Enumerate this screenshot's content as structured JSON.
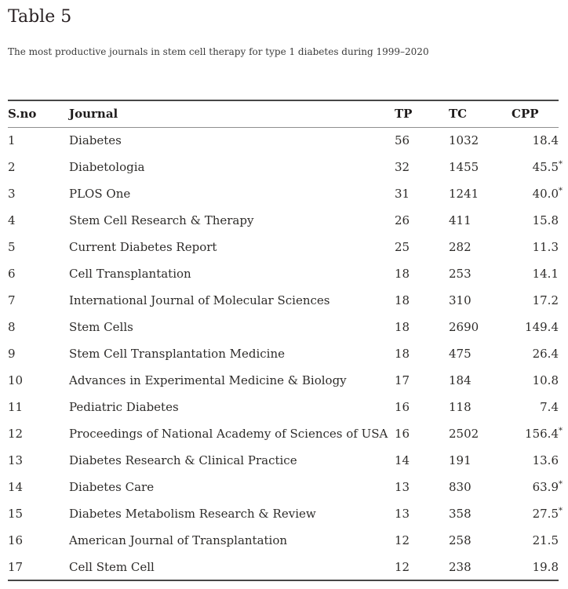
{
  "page": {
    "title": "Table 5",
    "caption": "The most productive journals in stem cell therapy for type 1 diabetes during 1999–2020"
  },
  "table": {
    "columns": [
      "S.no",
      "Journal",
      "TP",
      "TC",
      "CPP"
    ],
    "star_symbol": "*",
    "rows": [
      {
        "sno": "1",
        "journal": "Diabetes",
        "tp": "56",
        "tc": "1032",
        "cpp": "18.4",
        "star": false
      },
      {
        "sno": "2",
        "journal": "Diabetologia",
        "tp": "32",
        "tc": "1455",
        "cpp": "45.5",
        "star": true
      },
      {
        "sno": "3",
        "journal": "PLOS One",
        "tp": "31",
        "tc": "1241",
        "cpp": "40.0",
        "star": true
      },
      {
        "sno": "4",
        "journal": "Stem Cell Research & Therapy",
        "tp": "26",
        "tc": "411",
        "cpp": "15.8",
        "star": false
      },
      {
        "sno": "5",
        "journal": "Current Diabetes Report",
        "tp": "25",
        "tc": "282",
        "cpp": "11.3",
        "star": false
      },
      {
        "sno": "6",
        "journal": "Cell Transplantation",
        "tp": "18",
        "tc": "253",
        "cpp": "14.1",
        "star": false
      },
      {
        "sno": "7",
        "journal": "International Journal of Molecular Sciences",
        "tp": "18",
        "tc": "310",
        "cpp": "17.2",
        "star": false
      },
      {
        "sno": "8",
        "journal": "Stem Cells",
        "tp": "18",
        "tc": "2690",
        "cpp": "149.4",
        "star": false
      },
      {
        "sno": "9",
        "journal": "Stem Cell Transplantation Medicine",
        "tp": "18",
        "tc": "475",
        "cpp": "26.4",
        "star": false
      },
      {
        "sno": "10",
        "journal": "Advances in Experimental Medicine & Biology",
        "tp": "17",
        "tc": "184",
        "cpp": "10.8",
        "star": false
      },
      {
        "sno": "11",
        "journal": "Pediatric Diabetes",
        "tp": "16",
        "tc": "118",
        "cpp": "7.4",
        "star": false
      },
      {
        "sno": "12",
        "journal": "Proceedings of National Academy of Sciences of USA",
        "tp": "16",
        "tc": "2502",
        "cpp": "156.4",
        "star": true
      },
      {
        "sno": "13",
        "journal": "Diabetes Research & Clinical Practice",
        "tp": "14",
        "tc": "191",
        "cpp": "13.6",
        "star": false
      },
      {
        "sno": "14",
        "journal": "Diabetes Care",
        "tp": "13",
        "tc": "830",
        "cpp": "63.9",
        "star": true
      },
      {
        "sno": "15",
        "journal": "Diabetes Metabolism Research & Review",
        "tp": "13",
        "tc": "358",
        "cpp": "27.5",
        "star": true
      },
      {
        "sno": "16",
        "journal": "American Journal of Transplantation",
        "tp": "12",
        "tc": "258",
        "cpp": "21.5",
        "star": false
      },
      {
        "sno": "17",
        "journal": "Cell Stem Cell",
        "tp": "12",
        "tc": "238",
        "cpp": "19.8",
        "star": false
      }
    ]
  }
}
